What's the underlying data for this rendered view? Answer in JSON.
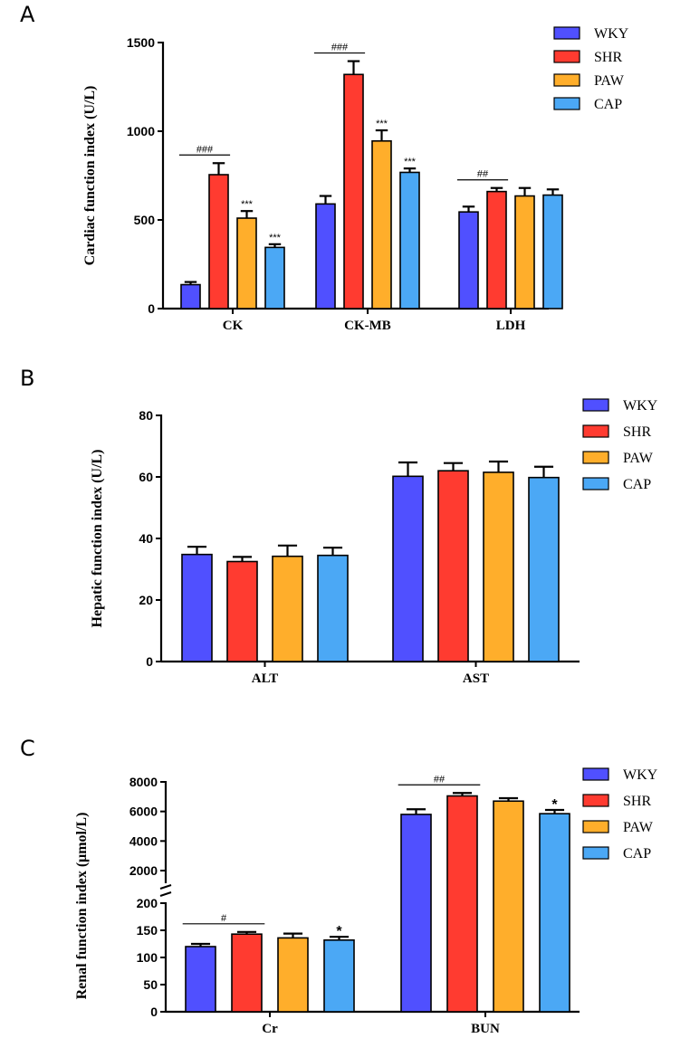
{
  "colors": {
    "WKY": "#5050ff",
    "SHR": "#ff3b30",
    "PAW": "#ffae2b",
    "CAP": "#4ba8f5"
  },
  "chart_data": [
    {
      "type": "bar",
      "panel_label": "A",
      "ylabel": "Cardiac function index (U/L)",
      "ylim": [
        0,
        1500
      ],
      "yticks": [
        0,
        500,
        1000,
        1500
      ],
      "categories": [
        "CK",
        "CK-MB",
        "LDH"
      ],
      "legend": [
        "WKY",
        "SHR",
        "PAW",
        "CAP"
      ],
      "legend_position": "top-right",
      "series": [
        {
          "name": "WKY",
          "values": [
            135,
            590,
            545
          ],
          "errors": [
            15,
            45,
            30
          ]
        },
        {
          "name": "SHR",
          "values": [
            755,
            1320,
            660
          ],
          "errors": [
            65,
            75,
            20
          ]
        },
        {
          "name": "PAW",
          "values": [
            510,
            945,
            635
          ],
          "errors": [
            40,
            60,
            45
          ]
        },
        {
          "name": "CAP",
          "values": [
            345,
            768,
            640
          ],
          "errors": [
            18,
            22,
            32
          ]
        }
      ],
      "annotations": [
        {
          "text": "###",
          "category": 0,
          "type": "bracket"
        },
        {
          "text": "***",
          "category": 0,
          "series": "PAW"
        },
        {
          "text": "***",
          "category": 0,
          "series": "CAP"
        },
        {
          "text": "###",
          "category": 1,
          "type": "bracket"
        },
        {
          "text": "***",
          "category": 1,
          "series": "PAW"
        },
        {
          "text": "***",
          "category": 1,
          "series": "CAP"
        },
        {
          "text": "##",
          "category": 2,
          "type": "bracket"
        }
      ]
    },
    {
      "type": "bar",
      "panel_label": "B",
      "ylabel": "Hepatic function index (U/L)",
      "ylim": [
        0,
        80
      ],
      "yticks": [
        0,
        20,
        40,
        60,
        80
      ],
      "categories": [
        "ALT",
        "AST"
      ],
      "legend": [
        "WKY",
        "SHR",
        "PAW",
        "CAP"
      ],
      "legend_position": "top-right",
      "series": [
        {
          "name": "WKY",
          "values": [
            34.8,
            60.2
          ],
          "errors": [
            2.5,
            4.5
          ]
        },
        {
          "name": "SHR",
          "values": [
            32.5,
            62.0
          ],
          "errors": [
            1.5,
            2.5
          ]
        },
        {
          "name": "PAW",
          "values": [
            34.2,
            61.5
          ],
          "errors": [
            3.5,
            3.5
          ]
        },
        {
          "name": "CAP",
          "values": [
            34.5,
            59.8
          ],
          "errors": [
            2.5,
            3.5
          ]
        }
      ],
      "annotations": []
    },
    {
      "type": "bar",
      "panel_label": "C",
      "ylabel": "Renal function index (μmol/L)",
      "axis_break": true,
      "ylim_lower": [
        0,
        200
      ],
      "ylim_upper": [
        2000,
        8000
      ],
      "yticks_lower": [
        0,
        50,
        100,
        150,
        200
      ],
      "yticks_upper": [
        2000,
        4000,
        6000,
        8000
      ],
      "categories": [
        "Cr",
        "BUN"
      ],
      "legend": [
        "WKY",
        "SHR",
        "PAW",
        "CAP"
      ],
      "legend_position": "top-right",
      "series": [
        {
          "name": "WKY",
          "values": [
            120,
            5800
          ],
          "errors": [
            5,
            350
          ]
        },
        {
          "name": "SHR",
          "values": [
            143,
            7050
          ],
          "errors": [
            4,
            200
          ]
        },
        {
          "name": "PAW",
          "values": [
            136,
            6700
          ],
          "errors": [
            8,
            200
          ]
        },
        {
          "name": "CAP",
          "values": [
            132,
            5850
          ],
          "errors": [
            6,
            250
          ]
        }
      ],
      "annotations": [
        {
          "text": "#",
          "category": 0,
          "type": "bracket"
        },
        {
          "text": "*",
          "category": 0,
          "series": "CAP"
        },
        {
          "text": "##",
          "category": 1,
          "type": "bracket"
        },
        {
          "text": "*",
          "category": 1,
          "series": "CAP"
        }
      ]
    }
  ]
}
